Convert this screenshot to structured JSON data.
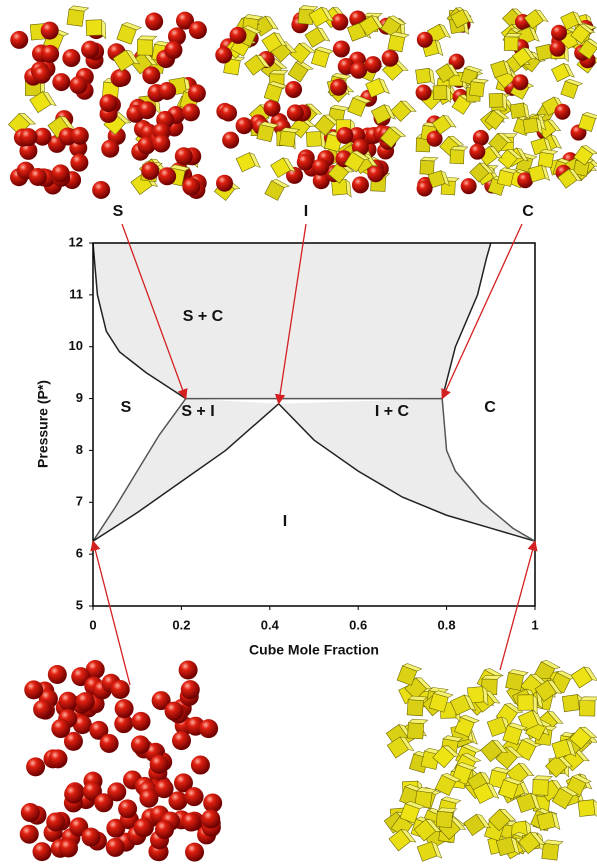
{
  "chart_data": {
    "type": "line",
    "xlabel": "Cube Mole Fraction",
    "ylabel": "Pressure (P*)",
    "xlim": [
      0,
      1
    ],
    "ylim": [
      5,
      12
    ],
    "xticks": [
      0,
      0.2,
      0.4,
      0.6,
      0.8,
      1
    ],
    "yticks": [
      5,
      6,
      7,
      8,
      9,
      10,
      11,
      12
    ],
    "region_fill": "#ececec",
    "series": [
      {
        "color": "#222222",
        "x": [
          0,
          0.01,
          0.03,
          0.06,
          0.12,
          0.21
        ],
        "values": [
          12,
          11,
          10.3,
          9.9,
          9.5,
          9
        ]
      },
      {
        "color": "#555555",
        "x": [
          0.21,
          0.79
        ],
        "values": [
          9,
          9
        ]
      },
      {
        "color": "#555555",
        "x": [
          0,
          0.05,
          0.1,
          0.15,
          0.21
        ],
        "values": [
          6.25,
          6.9,
          7.6,
          8.3,
          9
        ]
      },
      {
        "color": "#222222",
        "x": [
          0,
          0.1,
          0.2,
          0.3,
          0.42
        ],
        "values": [
          6.25,
          6.8,
          7.4,
          8.0,
          8.9
        ]
      },
      {
        "color": "#222222",
        "x": [
          0.42,
          0.5,
          0.6,
          0.7,
          0.8,
          0.9,
          1
        ],
        "values": [
          8.9,
          8.2,
          7.6,
          7.1,
          6.75,
          6.5,
          6.25
        ]
      },
      {
        "color": "#555555",
        "x": [
          0.79,
          0.8,
          0.82,
          0.88,
          0.95,
          1
        ],
        "values": [
          9,
          8.0,
          7.6,
          7.0,
          6.5,
          6.25
        ]
      },
      {
        "color": "#222222",
        "x": [
          0.79,
          0.82,
          0.87,
          0.89,
          0.9
        ],
        "values": [
          9,
          10,
          11,
          11.7,
          12
        ]
      }
    ],
    "annotations": [
      "S + C",
      "S",
      "S + I",
      "I + C",
      "C",
      "I"
    ],
    "image_labels": [
      "S",
      "I",
      "C"
    ]
  }
}
